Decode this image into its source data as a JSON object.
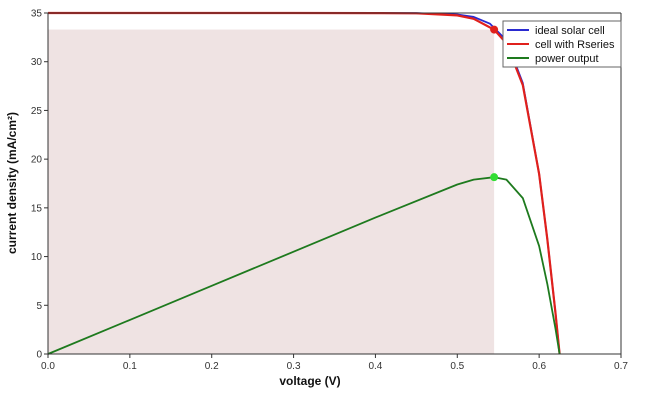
{
  "chart_data": {
    "type": "line",
    "title": "",
    "xlabel": "voltage (V)",
    "ylabel": "current density (mA/cm²)",
    "xlim": [
      0,
      0.7
    ],
    "ylim": [
      0,
      35
    ],
    "xticks": [
      "0.0",
      "0.1",
      "0.2",
      "0.3",
      "0.4",
      "0.5",
      "0.6",
      "0.7"
    ],
    "yticks": [
      "0",
      "5",
      "10",
      "15",
      "20",
      "25",
      "30",
      "35"
    ],
    "grid": false,
    "legend_position": "top-right",
    "max_power_rectangle": {
      "x": [
        0,
        0.545
      ],
      "y": [
        0,
        33.3
      ],
      "color": "#efe3e3"
    },
    "series": [
      {
        "name": "ideal solar cell",
        "color": "#2a2ad0",
        "x": [
          0,
          0.1,
          0.2,
          0.3,
          0.4,
          0.45,
          0.5,
          0.52,
          0.54,
          0.56,
          0.58,
          0.6,
          0.61,
          0.62,
          0.625
        ],
        "y": [
          35,
          35,
          35,
          35,
          34.99,
          34.98,
          34.85,
          34.6,
          33.9,
          32.2,
          27.8,
          18.5,
          11.8,
          4.2,
          0
        ]
      },
      {
        "name": "cell with Rseries",
        "color": "#e0201c",
        "x": [
          0,
          0.1,
          0.2,
          0.3,
          0.4,
          0.45,
          0.5,
          0.52,
          0.545,
          0.56,
          0.58,
          0.6,
          0.61,
          0.62,
          0.625
        ],
        "y": [
          35,
          35,
          35,
          35,
          34.99,
          34.97,
          34.75,
          34.4,
          33.3,
          31.9,
          27.6,
          18.5,
          11.8,
          4.2,
          0
        ]
      },
      {
        "name": "power output",
        "color": "#1e7a1e",
        "x": [
          0,
          0.1,
          0.2,
          0.3,
          0.4,
          0.5,
          0.52,
          0.545,
          0.56,
          0.58,
          0.6,
          0.61,
          0.62,
          0.625
        ],
        "y": [
          0,
          3.5,
          7.0,
          10.5,
          14.0,
          17.4,
          17.9,
          18.15,
          17.9,
          16.0,
          11.1,
          7.2,
          2.6,
          0
        ]
      }
    ],
    "markers": [
      {
        "series": "cell with Rseries",
        "x": 0.545,
        "y": 33.3,
        "color": "#e0201c"
      },
      {
        "series": "power output",
        "x": 0.545,
        "y": 18.15,
        "color": "#33dd33"
      }
    ]
  }
}
